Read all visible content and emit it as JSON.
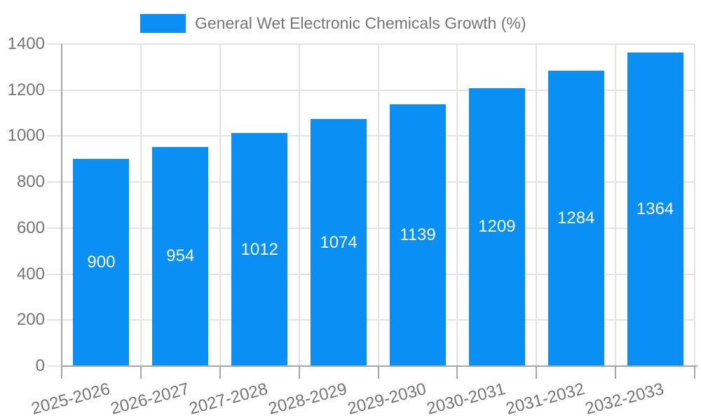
{
  "chart_data": {
    "type": "bar",
    "title": "General Wet Electronic Chemicals Growth (%)",
    "legend_entries": [
      "General Wet Electronic Chemicals Growth (%)"
    ],
    "legend_position": "top-center",
    "categories": [
      "2025-2026",
      "2026-2027",
      "2027-2028",
      "2028-2029",
      "2029-2030",
      "2030-2031",
      "2031-2032",
      "2032-2033"
    ],
    "values": [
      900,
      954,
      1012,
      1074,
      1139,
      1209,
      1284,
      1364
    ],
    "bar_labels": [
      "900",
      "954",
      "1012",
      "1074",
      "1139",
      "1209",
      "1284",
      "1364"
    ],
    "xlabel": "",
    "ylabel": "",
    "ylim": [
      0,
      1400
    ],
    "y_ticks": [
      0,
      200,
      400,
      600,
      800,
      1000,
      1200,
      1400
    ],
    "grid": true,
    "x_label_rotation_deg": -15,
    "colors": {
      "bar": "#0a90f5",
      "bar_label_text": "#ffffff",
      "axis_text": "#757575",
      "gridline": "#e3e3e3",
      "axis_line": "#a6a6a6"
    }
  }
}
